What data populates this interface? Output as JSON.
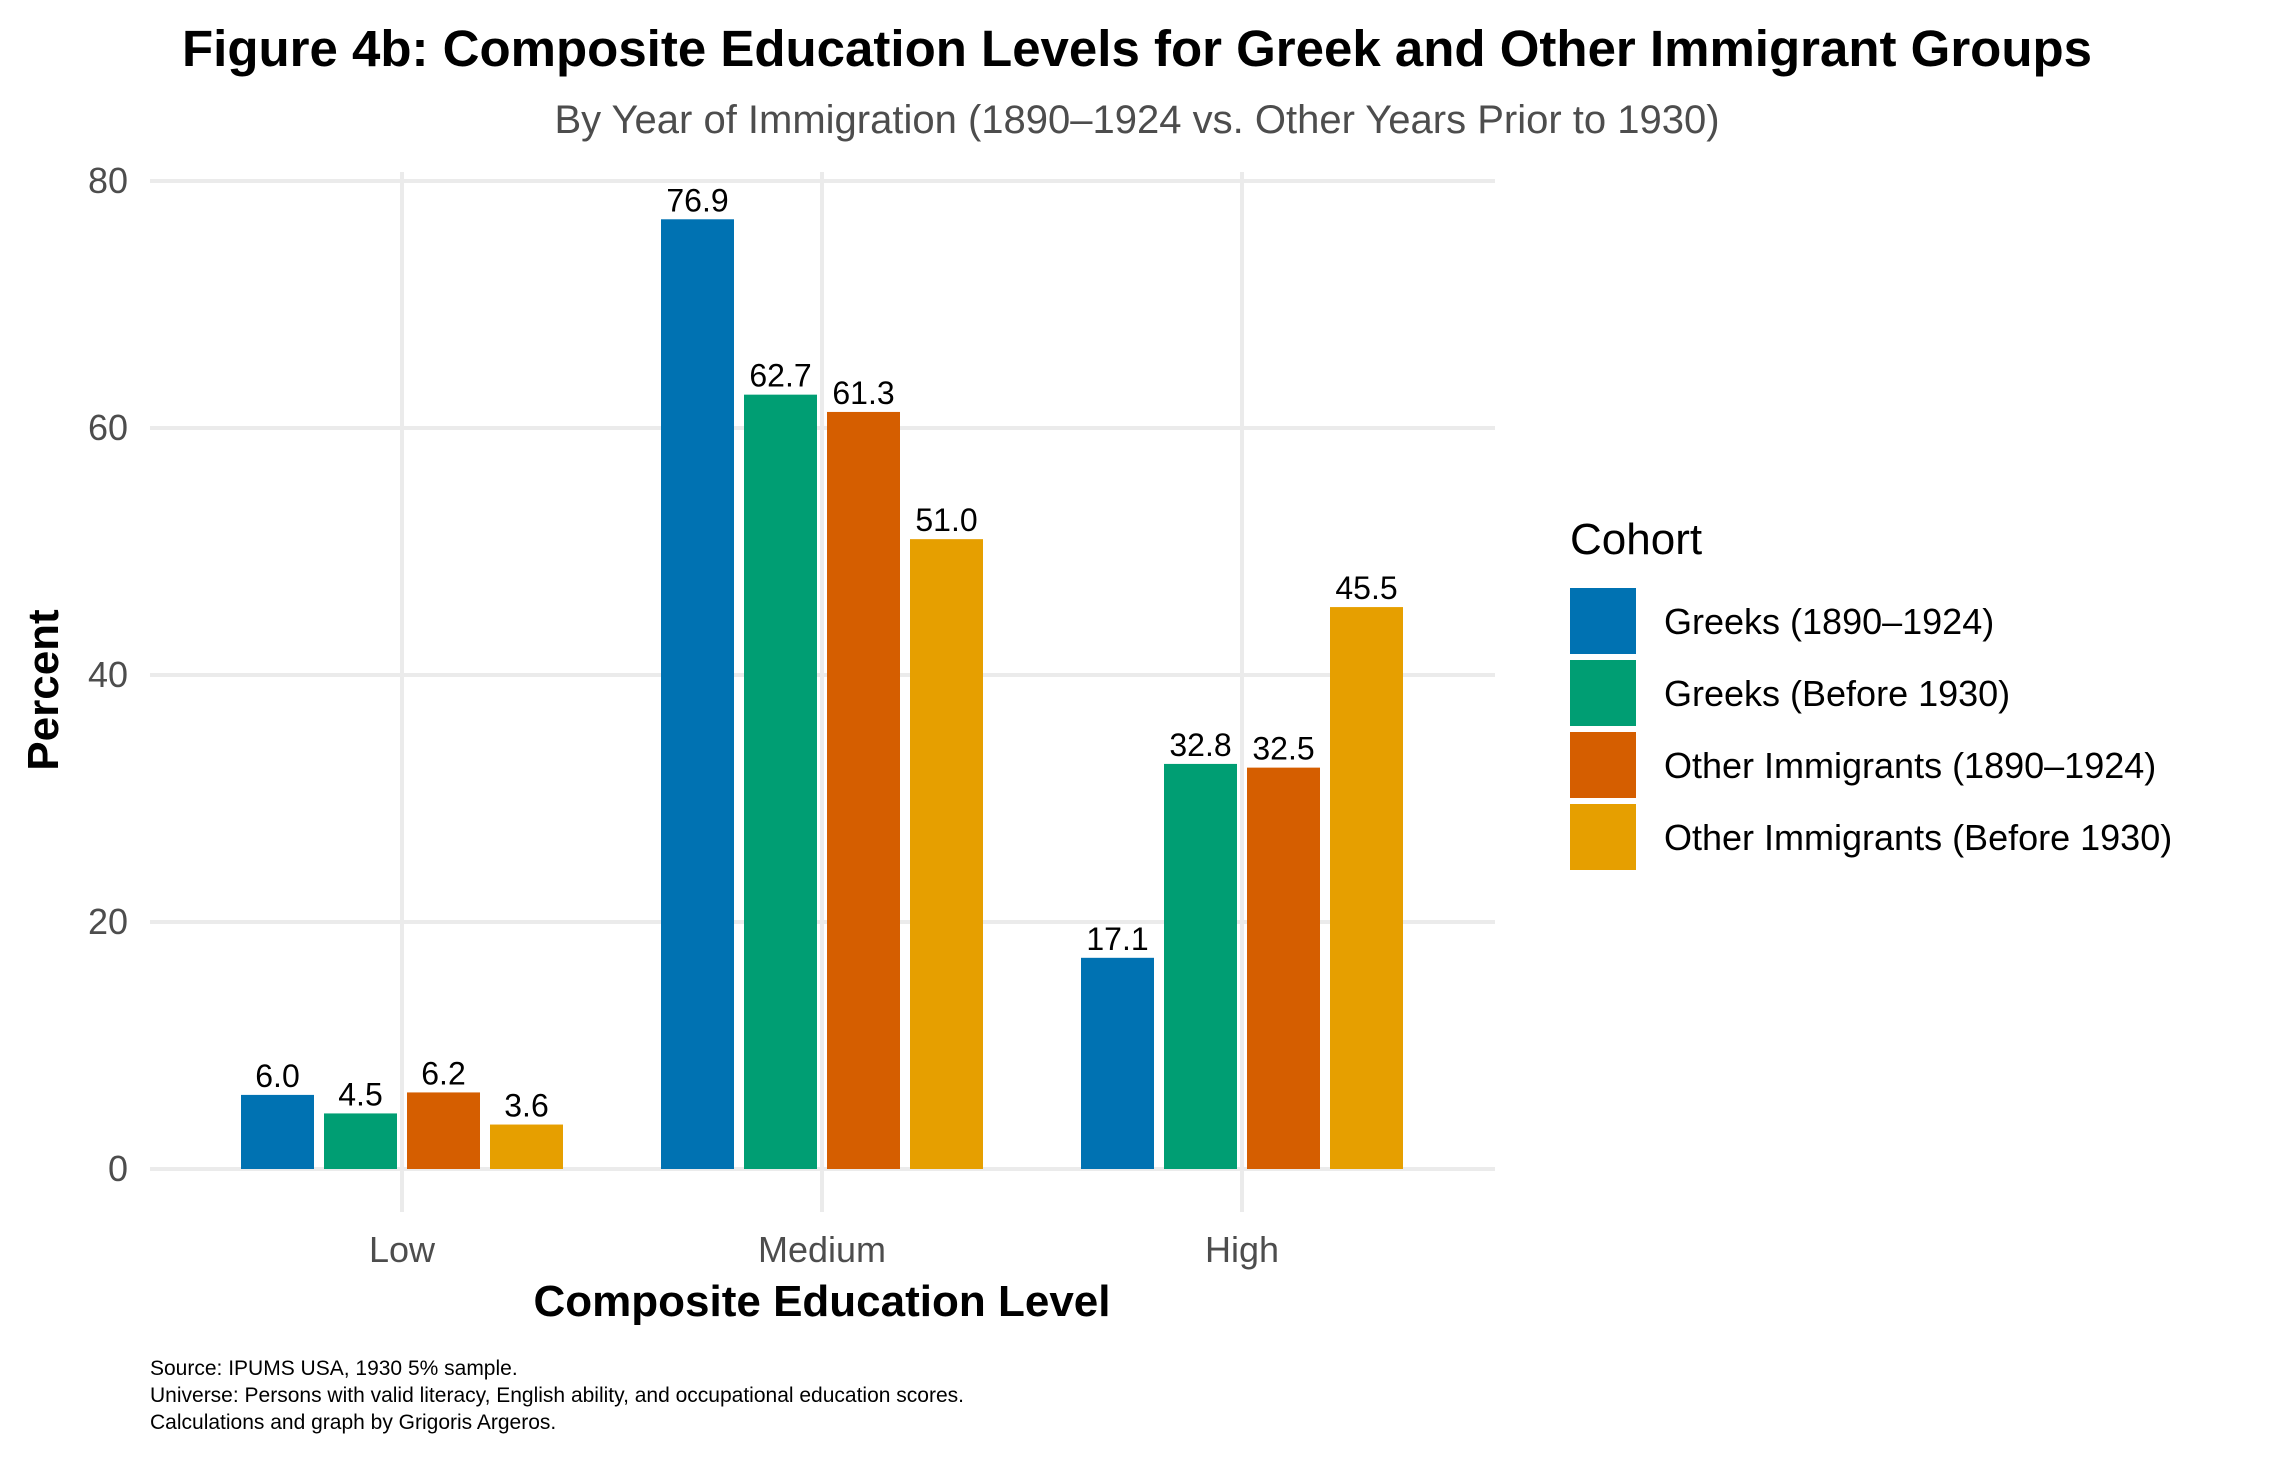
{
  "chart_data": {
    "type": "bar",
    "title": "Figure 4b: Composite Education Levels for Greek and Other Immigrant Groups",
    "subtitle": "By Year of Immigration (1890–1924 vs. Other Years Prior to 1930)",
    "xlabel": "Composite Education Level",
    "ylabel": "Percent",
    "categories": [
      "Low",
      "Medium",
      "High"
    ],
    "yticks": [
      0,
      20,
      40,
      60,
      80
    ],
    "ylim": [
      0,
      80
    ],
    "grid": true,
    "legend": {
      "title": "Cohort",
      "position": "right"
    },
    "series": [
      {
        "name": "Greeks (1890–1924)",
        "color": "#0072B2",
        "values": [
          6.0,
          76.9,
          17.1
        ],
        "labels": [
          "6.0",
          "76.9",
          "17.1"
        ]
      },
      {
        "name": "Greeks (Before 1930)",
        "color": "#009E73",
        "values": [
          4.5,
          62.7,
          32.8
        ],
        "labels": [
          "4.5",
          "62.7",
          "32.8"
        ]
      },
      {
        "name": "Other Immigrants (1890–1924)",
        "color": "#D55E00",
        "values": [
          6.2,
          61.3,
          32.5
        ],
        "labels": [
          "6.2",
          "61.3",
          "32.5"
        ]
      },
      {
        "name": "Other Immigrants (Before 1930)",
        "color": "#E69F00",
        "values": [
          3.6,
          51.0,
          45.5
        ],
        "labels": [
          "3.6",
          "51.0",
          "45.5"
        ]
      }
    ],
    "caption": [
      "Source: IPUMS USA, 1930 5% sample.",
      "Universe: Persons with valid literacy, English ability, and occupational education scores.",
      "Calculations and graph by Grigoris Argeros."
    ]
  }
}
